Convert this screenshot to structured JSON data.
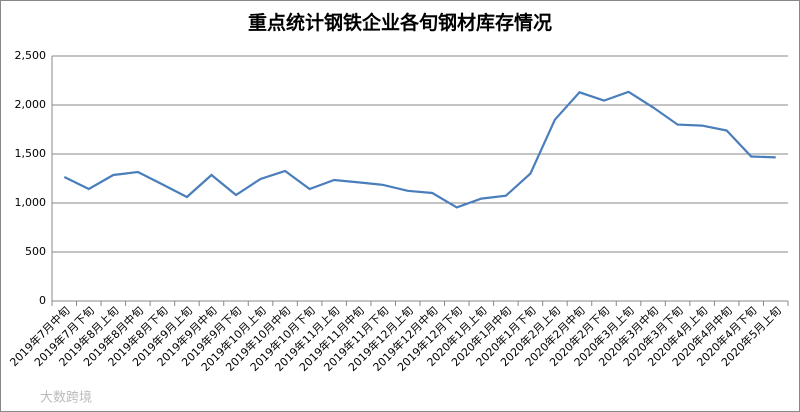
{
  "chart_data": {
    "type": "line",
    "title": "重点统计钢铁企业各旬钢材库存情况",
    "categories": [
      "2019年7月中旬",
      "2019年7月下旬",
      "2019年8月上旬",
      "2019年8月中旬",
      "2019年8月下旬",
      "2019年9月上旬",
      "2019年9月中旬",
      "2019年9月下旬",
      "2019年10月上旬",
      "2019年10月中旬",
      "2019年10月下旬",
      "2019年11月上旬",
      "2019年11月中旬",
      "2019年11月下旬",
      "2019年12月上旬",
      "2019年12月中旬",
      "2019年12月下旬",
      "2020年1月上旬",
      "2020年1月中旬",
      "2020年1月下旬",
      "2020年2月上旬",
      "2020年2月中旬",
      "2020年2月下旬",
      "2020年3月上旬",
      "2020年3月中旬",
      "2020年3月下旬",
      "2020年4月上旬",
      "2020年4月中旬",
      "2020年4月下旬",
      "2020年5月上旬"
    ],
    "values": [
      1265,
      1143,
      1286,
      1316,
      1190,
      1061,
      1286,
      1082,
      1245,
      1327,
      1143,
      1235,
      1210,
      1185,
      1125,
      1102,
      955,
      1045,
      1075,
      1300,
      1850,
      2130,
      2045,
      2135,
      1975,
      1800,
      1790,
      1740,
      1475,
      1465
    ],
    "color": "#4a7ebb",
    "ylim": [
      0,
      2500
    ],
    "yticks": [
      0,
      500,
      {
        "value": 1000,
        "label": "1,000"
      },
      {
        "value": 1500,
        "label": "1,500"
      },
      {
        "value": 2000,
        "label": "2,000"
      },
      {
        "value": 2500,
        "label": "2,500"
      }
    ],
    "grid": true,
    "watermark": "大数跨境"
  }
}
